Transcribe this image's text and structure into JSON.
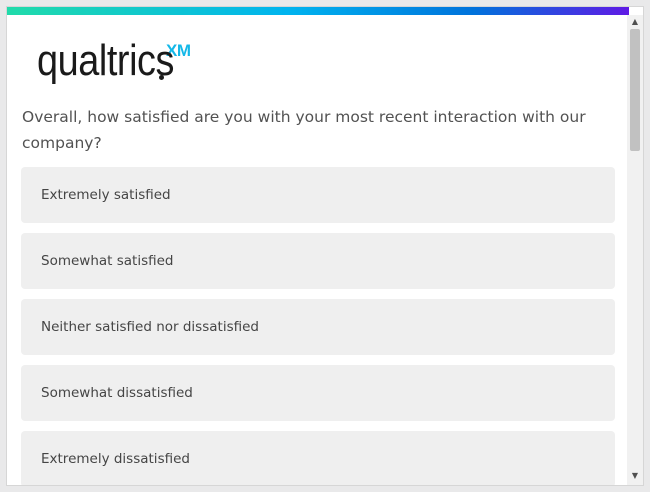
{
  "brand": {
    "wordmark": "qualtrics",
    "suffix": "XM",
    "gradient_colors": [
      "#21dbaa",
      "#00b4ef",
      "#0072db",
      "#5f1ae5"
    ],
    "suffix_color": "#14b8e8"
  },
  "survey": {
    "question": "Overall, how satisfied are you with your most recent interaction with our company?",
    "options": [
      "Extremely satisfied",
      "Somewhat satisfied",
      "Neither satisfied nor dissatisfied",
      "Somewhat dissatisfied",
      "Extremely dissatisfied"
    ]
  },
  "scrollbar": {
    "up_icon": "▲",
    "down_icon": "▼"
  }
}
